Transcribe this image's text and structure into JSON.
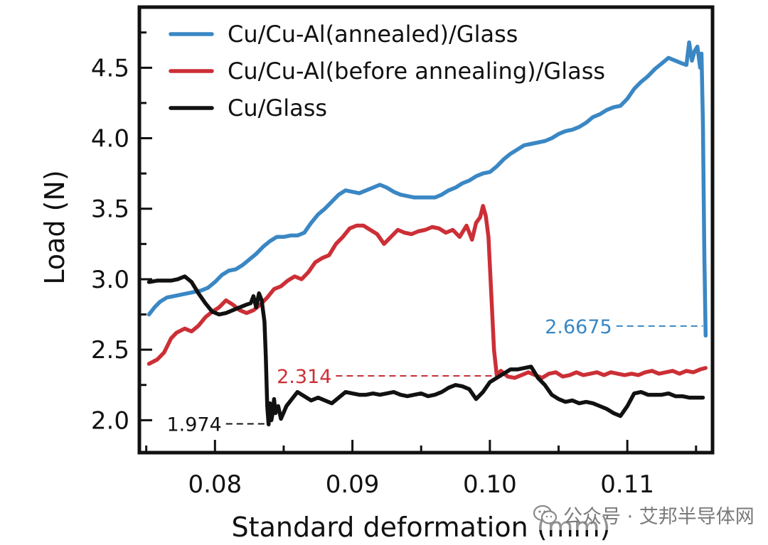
{
  "chart_data": {
    "type": "line",
    "xlabel": "Standard deformation (mm)",
    "ylabel": "Load (N)",
    "xlim": [
      0.0745,
      0.1162
    ],
    "ylim": [
      1.77,
      4.93
    ],
    "xticks": [
      0.08,
      0.09,
      0.1,
      0.11
    ],
    "xtick_labels": [
      "0.08",
      "0.09",
      "0.10",
      "0.11"
    ],
    "yticks": [
      2.0,
      2.5,
      3.0,
      3.5,
      4.0,
      4.5
    ],
    "ytick_labels": [
      "2.0",
      "2.5",
      "3.0",
      "3.5",
      "4.0",
      "4.5"
    ],
    "grid": false,
    "legend_position": "top-left",
    "series": [
      {
        "name": "Cu/Cu-Al(annealed)/Glass",
        "color": "#3a87c4",
        "x": [
          0.0752,
          0.0756,
          0.076,
          0.0765,
          0.077,
          0.0775,
          0.078,
          0.0785,
          0.079,
          0.0795,
          0.08,
          0.0805,
          0.081,
          0.0815,
          0.082,
          0.0825,
          0.083,
          0.0835,
          0.084,
          0.0845,
          0.085,
          0.0855,
          0.086,
          0.0865,
          0.087,
          0.0875,
          0.088,
          0.0885,
          0.089,
          0.0895,
          0.09,
          0.0905,
          0.091,
          0.0915,
          0.092,
          0.0925,
          0.093,
          0.0935,
          0.094,
          0.0945,
          0.095,
          0.0955,
          0.096,
          0.0965,
          0.097,
          0.0975,
          0.098,
          0.0985,
          0.099,
          0.0995,
          0.1,
          0.1005,
          0.101,
          0.1015,
          0.102,
          0.1025,
          0.103,
          0.1035,
          0.104,
          0.1045,
          0.105,
          0.1055,
          0.106,
          0.1065,
          0.107,
          0.1075,
          0.108,
          0.1085,
          0.109,
          0.1095,
          0.11,
          0.1105,
          0.111,
          0.1115,
          0.112,
          0.1125,
          0.113,
          0.1135,
          0.114,
          0.1143,
          0.1145,
          0.1147,
          0.1149,
          0.1151,
          0.1153,
          0.1154,
          0.1155,
          0.1156,
          0.1157
        ],
        "y": [
          2.75,
          2.8,
          2.84,
          2.87,
          2.88,
          2.89,
          2.9,
          2.91,
          2.92,
          2.94,
          2.98,
          3.03,
          3.06,
          3.07,
          3.1,
          3.14,
          3.18,
          3.23,
          3.27,
          3.3,
          3.3,
          3.31,
          3.31,
          3.33,
          3.4,
          3.46,
          3.5,
          3.55,
          3.6,
          3.63,
          3.62,
          3.61,
          3.63,
          3.65,
          3.67,
          3.65,
          3.62,
          3.6,
          3.59,
          3.58,
          3.58,
          3.58,
          3.58,
          3.6,
          3.63,
          3.65,
          3.68,
          3.7,
          3.73,
          3.75,
          3.76,
          3.8,
          3.85,
          3.89,
          3.92,
          3.95,
          3.96,
          3.97,
          3.98,
          4.0,
          4.03,
          4.05,
          4.06,
          4.08,
          4.11,
          4.15,
          4.17,
          4.2,
          4.22,
          4.23,
          4.28,
          4.35,
          4.4,
          4.44,
          4.49,
          4.53,
          4.57,
          4.55,
          4.53,
          4.52,
          4.68,
          4.55,
          4.62,
          4.65,
          4.5,
          4.6,
          4.1,
          3.2,
          2.6
        ]
      },
      {
        "name": "Cu/Cu-Al(before annealing)/Glass",
        "color": "#cc2f36",
        "x": [
          0.0752,
          0.0758,
          0.0763,
          0.0768,
          0.0772,
          0.0778,
          0.0783,
          0.0788,
          0.0793,
          0.0798,
          0.0803,
          0.0808,
          0.0813,
          0.0818,
          0.0823,
          0.0828,
          0.0833,
          0.0838,
          0.0843,
          0.0848,
          0.0853,
          0.0858,
          0.0863,
          0.0868,
          0.0873,
          0.0878,
          0.0883,
          0.0888,
          0.0893,
          0.0898,
          0.0903,
          0.0908,
          0.0913,
          0.0918,
          0.0923,
          0.0928,
          0.0933,
          0.0938,
          0.0943,
          0.0948,
          0.0953,
          0.0958,
          0.0963,
          0.0968,
          0.0973,
          0.0978,
          0.0983,
          0.0987,
          0.099,
          0.0993,
          0.0995,
          0.0997,
          0.0999,
          0.1001,
          0.1003,
          0.1005,
          0.1006,
          0.1008,
          0.1013,
          0.1018,
          0.1023,
          0.1028,
          0.1033,
          0.1038,
          0.1043,
          0.1048,
          0.1053,
          0.1058,
          0.1063,
          0.1068,
          0.1073,
          0.1078,
          0.1083,
          0.1088,
          0.1093,
          0.1098,
          0.1103,
          0.1108,
          0.1113,
          0.1118,
          0.1123,
          0.1128,
          0.1133,
          0.1138,
          0.1143,
          0.1148,
          0.1153,
          0.1157
        ],
        "y": [
          2.4,
          2.43,
          2.48,
          2.58,
          2.62,
          2.65,
          2.63,
          2.67,
          2.73,
          2.77,
          2.8,
          2.85,
          2.82,
          2.78,
          2.76,
          2.78,
          2.82,
          2.87,
          2.93,
          2.95,
          2.99,
          3.02,
          3.0,
          3.05,
          3.12,
          3.15,
          3.17,
          3.25,
          3.3,
          3.36,
          3.38,
          3.38,
          3.35,
          3.32,
          3.25,
          3.3,
          3.35,
          3.33,
          3.32,
          3.34,
          3.35,
          3.37,
          3.36,
          3.33,
          3.35,
          3.3,
          3.38,
          3.28,
          3.4,
          3.44,
          3.52,
          3.45,
          3.3,
          2.9,
          2.5,
          2.32,
          2.33,
          2.35,
          2.31,
          2.3,
          2.32,
          2.34,
          2.32,
          2.3,
          2.33,
          2.34,
          2.31,
          2.32,
          2.34,
          2.32,
          2.33,
          2.34,
          2.32,
          2.34,
          2.33,
          2.32,
          2.33,
          2.32,
          2.34,
          2.35,
          2.33,
          2.34,
          2.35,
          2.33,
          2.35,
          2.34,
          2.36,
          2.37
        ]
      },
      {
        "name": "Cu/Glass",
        "color": "#111111",
        "x": [
          0.0752,
          0.0758,
          0.0763,
          0.0768,
          0.0773,
          0.0778,
          0.0783,
          0.0788,
          0.0793,
          0.0798,
          0.0803,
          0.0808,
          0.0813,
          0.0818,
          0.0823,
          0.0826,
          0.0828,
          0.083,
          0.0832,
          0.0834,
          0.0836,
          0.0837,
          0.0838,
          0.0839,
          0.084,
          0.0841,
          0.0842,
          0.0843,
          0.0844,
          0.0846,
          0.0848,
          0.0852,
          0.0856,
          0.086,
          0.0865,
          0.087,
          0.0875,
          0.088,
          0.0885,
          0.089,
          0.0895,
          0.09,
          0.0905,
          0.091,
          0.0915,
          0.092,
          0.0925,
          0.093,
          0.0935,
          0.094,
          0.0945,
          0.095,
          0.0955,
          0.096,
          0.0965,
          0.097,
          0.0975,
          0.098,
          0.0985,
          0.099,
          0.0995,
          0.1,
          0.1005,
          0.101,
          0.1015,
          0.102,
          0.1025,
          0.103,
          0.1035,
          0.104,
          0.1045,
          0.105,
          0.1055,
          0.106,
          0.1065,
          0.107,
          0.1075,
          0.108,
          0.1085,
          0.109,
          0.1095,
          0.11,
          0.1105,
          0.111,
          0.1115,
          0.112,
          0.1125,
          0.113,
          0.1135,
          0.114,
          0.1145,
          0.115,
          0.1155
        ],
        "y": [
          2.98,
          2.99,
          2.99,
          2.99,
          3.0,
          3.02,
          2.98,
          2.9,
          2.83,
          2.77,
          2.75,
          2.76,
          2.78,
          2.8,
          2.82,
          2.83,
          2.88,
          2.8,
          2.9,
          2.85,
          2.7,
          2.45,
          2.1,
          1.97,
          2.12,
          2.0,
          2.05,
          2.15,
          2.05,
          2.1,
          2.01,
          2.1,
          2.15,
          2.2,
          2.17,
          2.14,
          2.16,
          2.14,
          2.12,
          2.16,
          2.2,
          2.19,
          2.18,
          2.18,
          2.19,
          2.18,
          2.19,
          2.2,
          2.18,
          2.17,
          2.18,
          2.19,
          2.17,
          2.18,
          2.2,
          2.23,
          2.25,
          2.24,
          2.22,
          2.15,
          2.2,
          2.27,
          2.3,
          2.33,
          2.36,
          2.36,
          2.37,
          2.38,
          2.3,
          2.25,
          2.18,
          2.15,
          2.13,
          2.14,
          2.12,
          2.13,
          2.12,
          2.1,
          2.08,
          2.05,
          2.03,
          2.1,
          2.19,
          2.2,
          2.18,
          2.18,
          2.18,
          2.19,
          2.17,
          2.17,
          2.16,
          2.16,
          2.16
        ]
      }
    ],
    "annotations": [
      {
        "text": "2.6675",
        "color": "#3a87c4",
        "value": 2.6675,
        "x_start": 0.1092,
        "x_end": 0.1155
      },
      {
        "text": "2.314",
        "color": "#cc2f36",
        "value": 2.314,
        "x_start": 0.0888,
        "x_end": 0.1004
      },
      {
        "text": "1.974",
        "color": "#111111",
        "value": 1.974,
        "x_start": 0.0808,
        "x_end": 0.0838
      }
    ]
  },
  "watermark": {
    "text": "公众号 · 艾邦半导体网",
    "icon": "wechat-icon"
  }
}
